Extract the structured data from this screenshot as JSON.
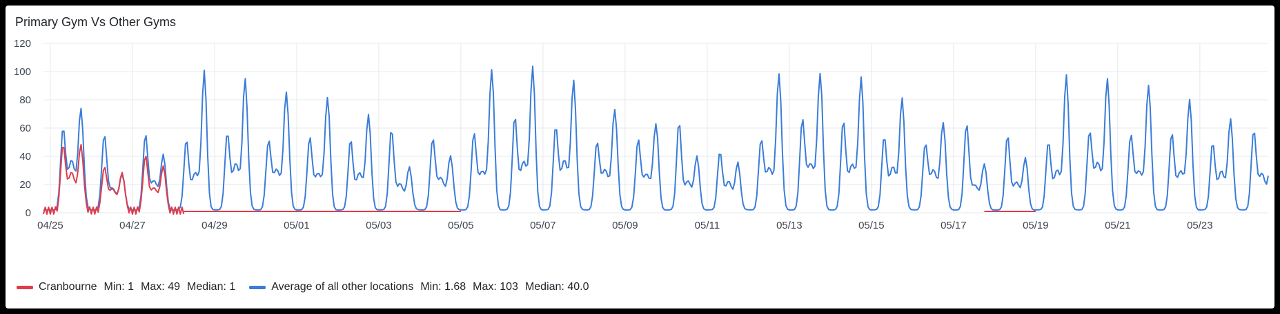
{
  "panel": {
    "title": "Primary Gym Vs Other Gyms"
  },
  "chart_data": {
    "type": "line",
    "title": "Primary Gym Vs Other Gyms",
    "x_range": [
      "2025-04-24T20:00",
      "2025-05-24T16:00"
    ],
    "x_tick_labels": [
      "04/25",
      "04/27",
      "04/29",
      "05/01",
      "05/03",
      "05/05",
      "05/07",
      "05/09",
      "05/11",
      "05/13",
      "05/15",
      "05/17",
      "05/19",
      "05/21",
      "05/23"
    ],
    "x_ticks": [
      "2025-04-25",
      "2025-04-27",
      "2025-04-29",
      "2025-05-01",
      "2025-05-03",
      "2025-05-05",
      "2025-05-07",
      "2025-05-09",
      "2025-05-11",
      "2025-05-13",
      "2025-05-15",
      "2025-05-17",
      "2025-05-19",
      "2025-05-21",
      "2025-05-23"
    ],
    "ylim": [
      0,
      120
    ],
    "y_ticks": [
      0,
      20,
      40,
      60,
      80,
      100,
      120
    ],
    "grid": true,
    "legend_position": "bottom-left",
    "series": [
      {
        "name": "Cranbourne",
        "color": "#e03c4b",
        "legend_stats": {
          "min": "Min: 1",
          "max": "Max: 49",
          "median": "Median: 1"
        },
        "daily_peaks": [
          {
            "date": "2025-04-25",
            "morning": 49,
            "evening": 48
          },
          {
            "date": "2025-04-26",
            "morning": 33,
            "evening": 29
          },
          {
            "date": "2025-04-27",
            "morning": 38,
            "evening": 32
          }
        ],
        "segments": [
          {
            "from": "2025-04-24T20:00",
            "to": "2025-04-28T06:00",
            "note_value_range": [
              1,
              49
            ]
          },
          {
            "from": "2025-04-28T06:00",
            "to": "2025-05-05T00:00",
            "value": 1
          },
          {
            "from": "2025-05-17T18:00",
            "to": "2025-05-19T00:00",
            "value": 1
          }
        ]
      },
      {
        "name": "Average of all other locations",
        "color": "#3b7dd8",
        "legend_stats": {
          "min": "Min: 1.68",
          "max": "Max: 103",
          "median": "Median: 40.0"
        },
        "daily_peaks": [
          {
            "date": "2025-04-25",
            "morning": 61,
            "evening": 75
          },
          {
            "date": "2025-04-26",
            "morning": 57,
            "evening": 28
          },
          {
            "date": "2025-04-27",
            "morning": 52,
            "evening": 40
          },
          {
            "date": "2025-04-28",
            "morning": 48,
            "evening": 97
          },
          {
            "date": "2025-04-29",
            "morning": 57,
            "evening": 96
          },
          {
            "date": "2025-04-30",
            "morning": 52,
            "evening": 89
          },
          {
            "date": "2025-05-01",
            "morning": 50,
            "evening": 81
          },
          {
            "date": "2025-05-02",
            "morning": 48,
            "evening": 67
          },
          {
            "date": "2025-05-03",
            "morning": 60,
            "evening": 32
          },
          {
            "date": "2025-05-04",
            "morning": 54,
            "evening": 41
          },
          {
            "date": "2025-05-05",
            "morning": 53,
            "evening": 101
          },
          {
            "date": "2025-05-06",
            "morning": 63,
            "evening": 100
          },
          {
            "date": "2025-05-07",
            "morning": 61,
            "evening": 94
          },
          {
            "date": "2025-05-08",
            "morning": 51,
            "evening": 76
          },
          {
            "date": "2025-05-09",
            "morning": 49,
            "evening": 63
          },
          {
            "date": "2025-05-10",
            "morning": 60,
            "evening": 38
          },
          {
            "date": "2025-05-11",
            "morning": 43,
            "evening": 35
          },
          {
            "date": "2025-05-12",
            "morning": 53,
            "evening": 102
          },
          {
            "date": "2025-05-13",
            "morning": 63,
            "evening": 99
          },
          {
            "date": "2025-05-14",
            "morning": 60,
            "evening": 93
          },
          {
            "date": "2025-05-15",
            "morning": 53,
            "evening": 81
          },
          {
            "date": "2025-05-16",
            "morning": 50,
            "evening": 66
          },
          {
            "date": "2025-05-17",
            "morning": 61,
            "evening": 34
          },
          {
            "date": "2025-05-18",
            "morning": 51,
            "evening": 37
          },
          {
            "date": "2025-05-19",
            "morning": 49,
            "evening": 97
          },
          {
            "date": "2025-05-20",
            "morning": 59,
            "evening": 98
          },
          {
            "date": "2025-05-21",
            "morning": 53,
            "evening": 91
          },
          {
            "date": "2025-05-22",
            "morning": 52,
            "evening": 78
          },
          {
            "date": "2025-05-23",
            "morning": 48,
            "evening": 66
          },
          {
            "date": "2025-05-24",
            "morning": 60,
            "evening": 45
          }
        ]
      }
    ]
  }
}
